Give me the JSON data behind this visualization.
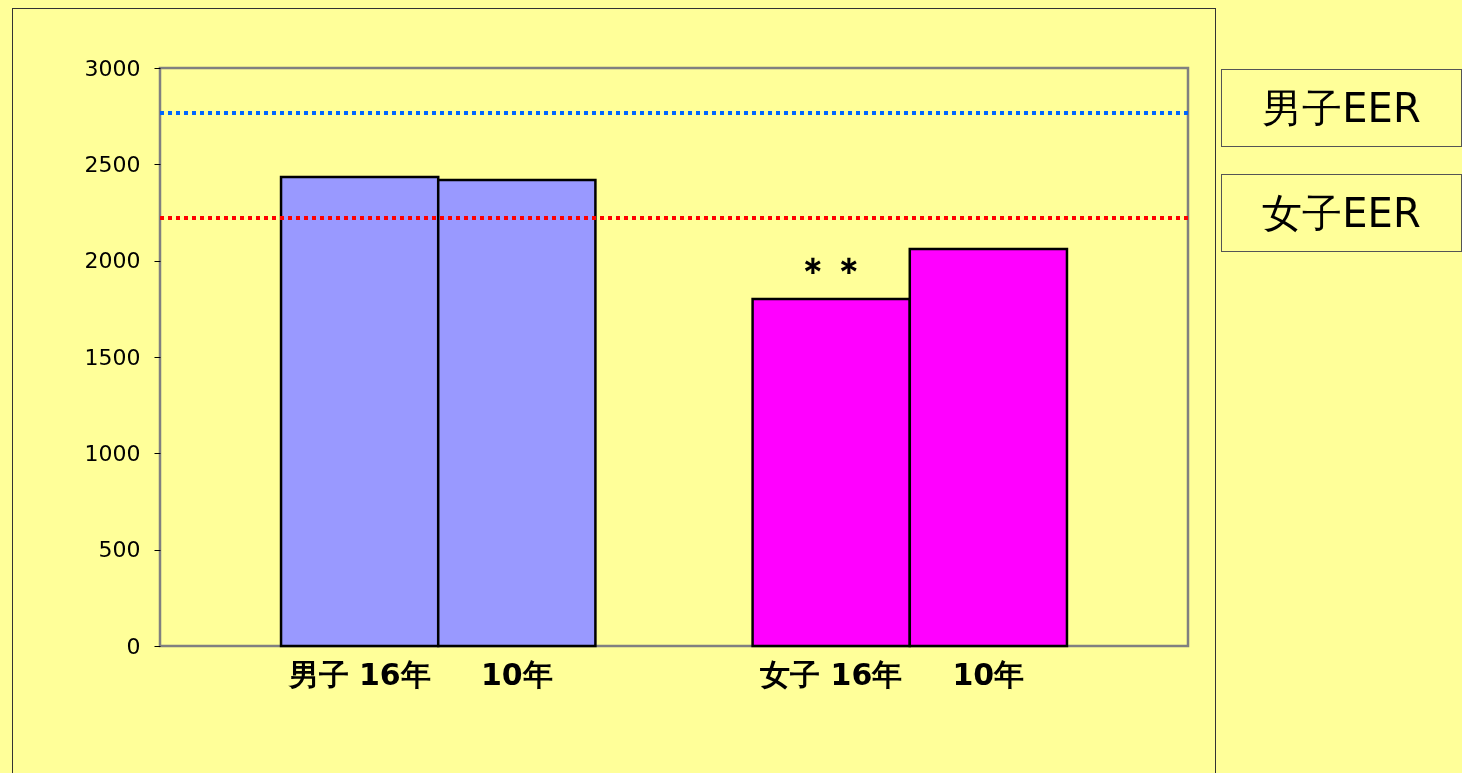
{
  "chart_data": {
    "type": "bar",
    "categories": [
      "男子 16年",
      "10年",
      "女子 16年",
      "10年"
    ],
    "values": [
      2434,
      2419,
      1801,
      2061
    ],
    "colors": [
      "#9999ff",
      "#9999ff",
      "#ff00ff",
      "#ff00ff"
    ],
    "ylim": [
      0,
      3000
    ],
    "yticks": [
      0,
      500,
      1000,
      1500,
      2000,
      2500,
      3000
    ],
    "ref_lines": [
      {
        "axis": "y",
        "value": 2766,
        "label": "男子EER",
        "color": "#0066ff",
        "line_style": "dotted"
      },
      {
        "axis": "y",
        "value": 2221,
        "label": "女子EER",
        "color": "#ff0000",
        "line_style": "dotted"
      }
    ],
    "annotations": [
      "＊＊"
    ],
    "grid": false
  }
}
